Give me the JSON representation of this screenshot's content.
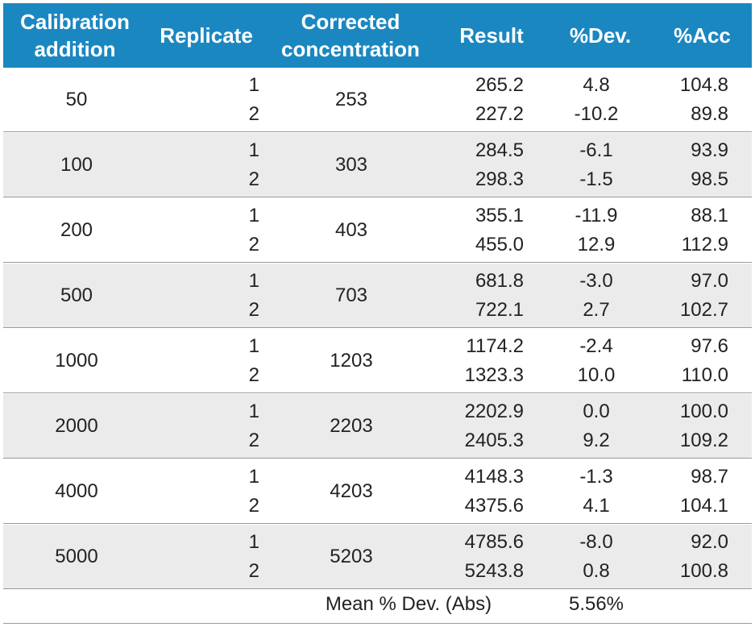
{
  "table": {
    "headers": {
      "calibration": "Calibration\naddition",
      "replicate": "Replicate",
      "corrected": "Corrected\nconcentration",
      "result": "Result",
      "dev": "%Dev.",
      "acc": "%Acc"
    },
    "groups": [
      {
        "calibration": "50",
        "corrected": "253",
        "rows": [
          {
            "replicate": "1",
            "result": "265.2",
            "dev": "4.8",
            "acc": "104.8"
          },
          {
            "replicate": "2",
            "result": "227.2",
            "dev": "-10.2",
            "acc": "89.8"
          }
        ]
      },
      {
        "calibration": "100",
        "corrected": "303",
        "rows": [
          {
            "replicate": "1",
            "result": "284.5",
            "dev": "-6.1",
            "acc": "93.9"
          },
          {
            "replicate": "2",
            "result": "298.3",
            "dev": "-1.5",
            "acc": "98.5"
          }
        ]
      },
      {
        "calibration": "200",
        "corrected": "403",
        "rows": [
          {
            "replicate": "1",
            "result": "355.1",
            "dev": "-11.9",
            "acc": "88.1"
          },
          {
            "replicate": "2",
            "result": "455.0",
            "dev": "12.9",
            "acc": "112.9"
          }
        ]
      },
      {
        "calibration": "500",
        "corrected": "703",
        "rows": [
          {
            "replicate": "1",
            "result": "681.8",
            "dev": "-3.0",
            "acc": "97.0"
          },
          {
            "replicate": "2",
            "result": "722.1",
            "dev": "2.7",
            "acc": "102.7"
          }
        ]
      },
      {
        "calibration": "1000",
        "corrected": "1203",
        "rows": [
          {
            "replicate": "1",
            "result": "1174.2",
            "dev": "-2.4",
            "acc": "97.6"
          },
          {
            "replicate": "2",
            "result": "1323.3",
            "dev": "10.0",
            "acc": "110.0"
          }
        ]
      },
      {
        "calibration": "2000",
        "corrected": "2203",
        "rows": [
          {
            "replicate": "1",
            "result": "2202.9",
            "dev": "0.0",
            "acc": "100.0"
          },
          {
            "replicate": "2",
            "result": "2405.3",
            "dev": "9.2",
            "acc": "109.2"
          }
        ]
      },
      {
        "calibration": "4000",
        "corrected": "4203",
        "rows": [
          {
            "replicate": "1",
            "result": "4148.3",
            "dev": "-1.3",
            "acc": "98.7"
          },
          {
            "replicate": "2",
            "result": "4375.6",
            "dev": "4.1",
            "acc": "104.1"
          }
        ]
      },
      {
        "calibration": "5000",
        "corrected": "5203",
        "rows": [
          {
            "replicate": "1",
            "result": "4785.6",
            "dev": "-8.0",
            "acc": "92.0"
          },
          {
            "replicate": "2",
            "result": "5243.8",
            "dev": "0.8",
            "acc": "100.8"
          }
        ]
      }
    ],
    "footer": {
      "label": "Mean % Dev. (Abs)",
      "value": "5.56%"
    },
    "colors": {
      "header_bg": "#1b87c0",
      "header_text": "#ffffff",
      "shaded_row": "#ebebeb",
      "text": "#222222"
    }
  }
}
